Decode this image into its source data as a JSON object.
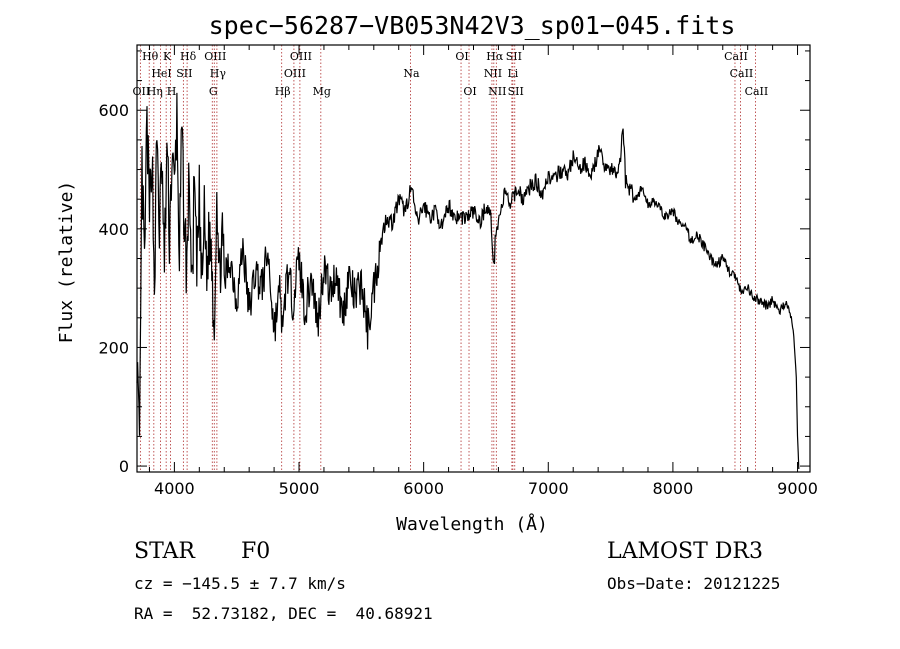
{
  "chart_data": {
    "type": "line",
    "title": "spec−56287−VB053N42V3_sp01−045.fits",
    "xlabel": "Wavelength (Å)",
    "ylabel": "Flux (relative)",
    "xlim": [
      3700,
      9100
    ],
    "ylim": [
      -10,
      710
    ],
    "xticks": [
      4000,
      5000,
      6000,
      7000,
      8000,
      9000
    ],
    "yticks": [
      0,
      200,
      400,
      600
    ],
    "series": [
      {
        "name": "flux",
        "x": [
          3700,
          3720,
          3740,
          3760,
          3780,
          3800,
          3820,
          3840,
          3860,
          3880,
          3900,
          3920,
          3940,
          3960,
          3980,
          4000,
          4020,
          4040,
          4060,
          4080,
          4100,
          4120,
          4140,
          4160,
          4180,
          4200,
          4220,
          4240,
          4260,
          4280,
          4300,
          4320,
          4340,
          4360,
          4380,
          4400,
          4450,
          4500,
          4550,
          4600,
          4650,
          4700,
          4750,
          4800,
          4850,
          4870,
          4900,
          4950,
          5000,
          5050,
          5100,
          5150,
          5200,
          5250,
          5300,
          5350,
          5400,
          5450,
          5500,
          5550,
          5600,
          5650,
          5700,
          5750,
          5800,
          5850,
          5900,
          5950,
          6000,
          6050,
          6100,
          6150,
          6200,
          6250,
          6300,
          6350,
          6400,
          6450,
          6500,
          6540,
          6563,
          6580,
          6620,
          6650,
          6700,
          6750,
          6800,
          6850,
          6900,
          6950,
          7000,
          7050,
          7100,
          7150,
          7200,
          7250,
          7300,
          7350,
          7400,
          7450,
          7500,
          7550,
          7580,
          7600,
          7620,
          7650,
          7700,
          7750,
          7800,
          7850,
          7900,
          7950,
          8000,
          8050,
          8100,
          8150,
          8200,
          8250,
          8300,
          8350,
          8400,
          8450,
          8500,
          8550,
          8600,
          8650,
          8700,
          8750,
          8800,
          8850,
          8900,
          8930,
          8950,
          8970,
          8990,
          9000,
          9010
        ],
        "values": [
          200,
          0,
          500,
          330,
          580,
          420,
          540,
          300,
          560,
          400,
          510,
          330,
          540,
          390,
          520,
          460,
          590,
          350,
          560,
          410,
          330,
          500,
          280,
          480,
          320,
          450,
          300,
          420,
          330,
          390,
          350,
          230,
          480,
          300,
          400,
          310,
          350,
          280,
          370,
          260,
          330,
          300,
          360,
          230,
          300,
          210,
          330,
          280,
          350,
          260,
          320,
          240,
          340,
          290,
          330,
          250,
          320,
          280,
          310,
          230,
          300,
          370,
          420,
          410,
          450,
          430,
          470,
          410,
          440,
          420,
          430,
          400,
          440,
          420,
          420,
          420,
          430,
          410,
          440,
          420,
          330,
          400,
          430,
          460,
          440,
          470,
          450,
          470,
          480,
          460,
          490,
          480,
          500,
          490,
          520,
          500,
          510,
          490,
          530,
          510,
          500,
          490,
          520,
          580,
          480,
          470,
          450,
          470,
          440,
          450,
          430,
          420,
          430,
          410,
          400,
          380,
          390,
          370,
          350,
          340,
          350,
          330,
          320,
          290,
          300,
          280,
          280,
          270,
          280,
          260,
          270,
          270,
          250,
          220,
          150,
          50,
          -5
        ]
      }
    ],
    "emission_lines": [
      {
        "label": "OII",
        "wave": 3727,
        "row": 3
      },
      {
        "label": "Hθ",
        "wave": 3798,
        "row": 1
      },
      {
        "label": "Hη",
        "wave": 3835,
        "row": 3
      },
      {
        "label": "HeI",
        "wave": 3889,
        "row": 2
      },
      {
        "label": "K",
        "wave": 3934,
        "row": 1
      },
      {
        "label": "H",
        "wave": 3969,
        "row": 3
      },
      {
        "label": "SII",
        "wave": 4072,
        "row": 2
      },
      {
        "label": "Hδ",
        "wave": 4102,
        "row": 1
      },
      {
        "label": "G",
        "wave": 4304,
        "row": 3
      },
      {
        "label": "OIII",
        "wave": 4320,
        "row": 1
      },
      {
        "label": "Hγ",
        "wave": 4341,
        "row": 2
      },
      {
        "label": "Hβ",
        "wave": 4861,
        "row": 3
      },
      {
        "label": "OIII",
        "wave": 4959,
        "row": 2
      },
      {
        "label": "OIII",
        "wave": 5007,
        "row": 1
      },
      {
        "label": "Mg",
        "wave": 5175,
        "row": 3
      },
      {
        "label": "Na",
        "wave": 5894,
        "row": 2
      },
      {
        "label": "OI",
        "wave": 6300,
        "row": 1
      },
      {
        "label": "OI",
        "wave": 6364,
        "row": 3
      },
      {
        "label": "NII",
        "wave": 6548,
        "row": 2
      },
      {
        "label": "Hα",
        "wave": 6563,
        "row": 1
      },
      {
        "label": "NII",
        "wave": 6583,
        "row": 3
      },
      {
        "label": "SII",
        "wave": 6716,
        "row": 1
      },
      {
        "label": "Li",
        "wave": 6708,
        "row": 2
      },
      {
        "label": "SII",
        "wave": 6731,
        "row": 3
      },
      {
        "label": "CaII",
        "wave": 8498,
        "row": 1
      },
      {
        "label": "CaII",
        "wave": 8542,
        "row": 2
      },
      {
        "label": "CaII",
        "wave": 8662,
        "row": 3
      }
    ]
  },
  "info": {
    "object_class": "STAR",
    "subclass": "F0",
    "survey": "LAMOST DR3",
    "redshift": "cz = −145.5 ± 7.7 km/s",
    "obs_date": "Obs−Date: 20121225",
    "coords": "RA =  52.73182, DEC =  40.68921"
  },
  "colors": {
    "line_marker": "#b03030",
    "spectrum": "#000000"
  }
}
